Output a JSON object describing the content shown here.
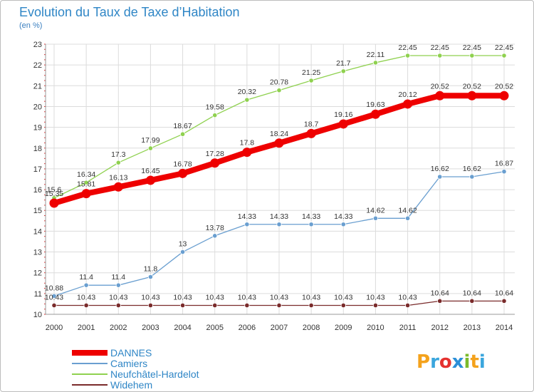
{
  "header": {
    "title": "Evolution du Taux de Taxe d’Habitation",
    "subtitle": "(en %)"
  },
  "logo": {
    "text": "Proxiti",
    "letters": [
      {
        "ch": "P",
        "color": "#f4a21c"
      },
      {
        "ch": "r",
        "color": "#3aa6dd"
      },
      {
        "ch": "o",
        "color": "#e5312f"
      },
      {
        "ch": "x",
        "color": "#2b8fd8"
      },
      {
        "ch": "i",
        "color": "#7bbb2b"
      },
      {
        "ch": "t",
        "color": "#f4a21c"
      },
      {
        "ch": "i",
        "color": "#3aa6dd"
      }
    ]
  },
  "chart_data": {
    "type": "line",
    "title": "Evolution du Taux de Taxe d’Habitation",
    "ylabel": "(en %)",
    "xlabel": "",
    "x": [
      2000,
      2001,
      2002,
      2003,
      2004,
      2005,
      2006,
      2007,
      2008,
      2009,
      2010,
      2011,
      2012,
      2013,
      2014
    ],
    "ylim": [
      10,
      23
    ],
    "yticks": [
      10,
      11,
      12,
      13,
      14,
      15,
      16,
      17,
      18,
      19,
      20,
      21,
      22,
      23
    ],
    "grid": true,
    "legend": "bottom-left",
    "series": [
      {
        "name": "DANNES",
        "color": "#ee0000",
        "emphasis": true,
        "values": [
          15.35,
          15.81,
          16.13,
          16.45,
          16.78,
          17.28,
          17.8,
          18.24,
          18.7,
          19.16,
          19.63,
          20.12,
          20.52,
          20.52,
          20.52
        ],
        "labels": [
          "15.35",
          "15.81",
          "16.13",
          "16.45",
          "16.78",
          "17.28",
          "17.8",
          "18.24",
          "18.7",
          "19.16",
          "19.63",
          "20.12",
          "20.52",
          "20.52",
          "20.52"
        ]
      },
      {
        "name": "Camiers",
        "color": "#6a9fd0",
        "emphasis": false,
        "values": [
          10.88,
          11.4,
          11.4,
          11.8,
          13,
          13.78,
          14.33,
          14.33,
          14.33,
          14.33,
          14.62,
          14.62,
          16.62,
          16.62,
          16.87
        ],
        "labels": [
          "10.88",
          "11.4",
          "11.4",
          "11.8",
          "13",
          "13.78",
          "14.33",
          "14.33",
          "14.33",
          "14.33",
          "14.62",
          "14.62",
          "16.62",
          "16.62",
          "16.87"
        ]
      },
      {
        "name": "Neufchâtel-Hardelot",
        "color": "#8fd14f",
        "emphasis": false,
        "values": [
          15.6,
          16.34,
          17.3,
          17.99,
          18.67,
          19.58,
          20.32,
          20.78,
          21.25,
          21.7,
          22.11,
          22.45,
          22.45,
          22.45,
          22.45
        ],
        "labels": [
          "15.6",
          "16.34",
          "17.3",
          "17.99",
          "18.67",
          "19.58",
          "20.32",
          "20.78",
          "21.25",
          "21.7",
          "22.11",
          "22.45",
          "22.45",
          "22.45",
          "22.45"
        ]
      },
      {
        "name": "Widehem",
        "color": "#7a2b2b",
        "emphasis": false,
        "values": [
          10.43,
          10.43,
          10.43,
          10.43,
          10.43,
          10.43,
          10.43,
          10.43,
          10.43,
          10.43,
          10.43,
          10.43,
          10.64,
          10.64,
          10.64
        ],
        "labels": [
          "10.43",
          "10.43",
          "10.43",
          "10.43",
          "10.43",
          "10.43",
          "10.43",
          "10.43",
          "10.43",
          "10.43",
          "10.43",
          "10.43",
          "10.64",
          "10.64",
          "10.64"
        ]
      }
    ]
  }
}
